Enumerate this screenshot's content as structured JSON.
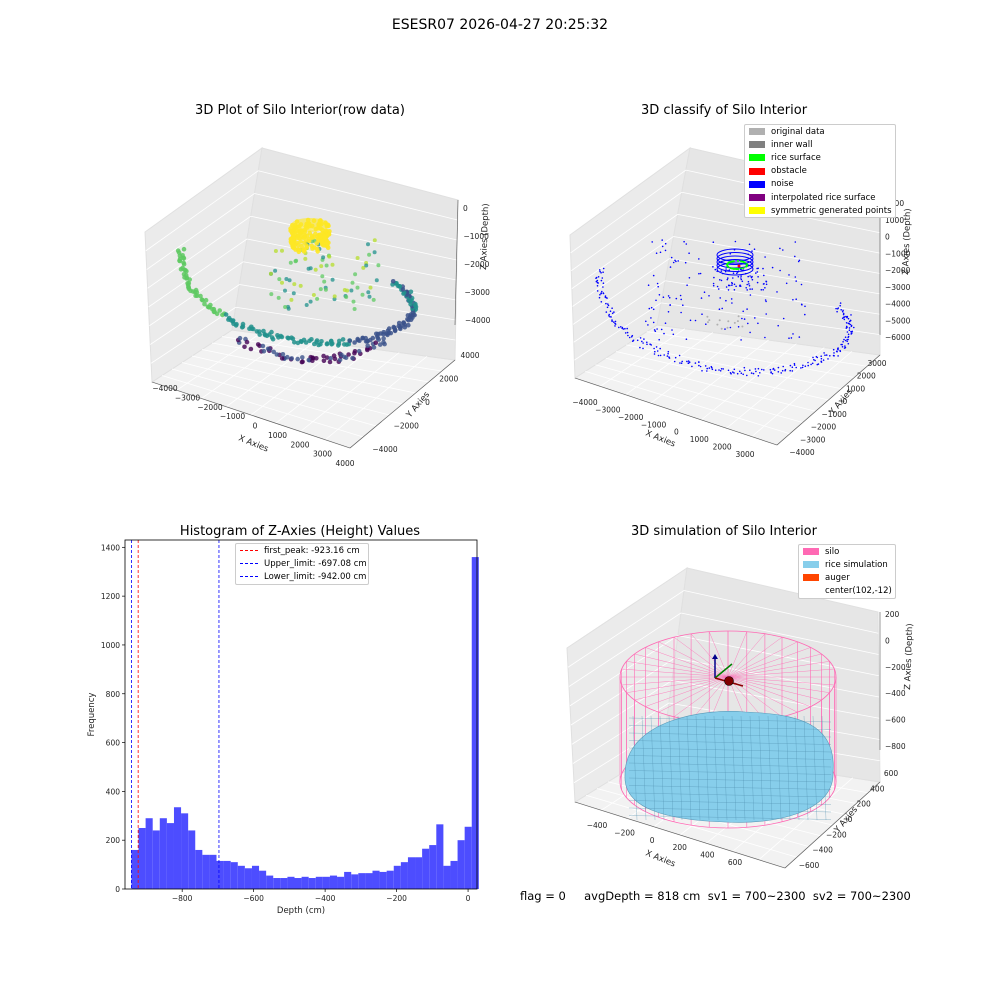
{
  "suptitle": "ESESR07 2026-04-27 20:25:32",
  "footer_text": "flag = 0     avgDepth = 818 cm  sv1 = 700~2300  sv2 = 700~2300",
  "colors": {
    "histogram_bar": "#4d4dff",
    "first_peak_line": "#ff0000",
    "limit_lines": "#0000ff",
    "silo_wire": "#ff69b4",
    "rice_surface": "#87ceeb",
    "auger": "#ff4500",
    "noise_points": "#0000ff"
  },
  "chart_data": [
    {
      "id": "raw",
      "type": "scatter",
      "title": "3D Plot of Silo Interior(row data)",
      "xlabel": "X Axies",
      "ylabel": "Y Axies",
      "zlabel": "Z Axies (Depth)",
      "xticks": [
        "−4000",
        "−3000",
        "−2000",
        "−1000",
        "0",
        "1000",
        "2000",
        "3000",
        "4000"
      ],
      "yticks": [
        "−4000",
        "−2000",
        "0",
        "2000",
        "4000"
      ],
      "zticks": [
        "0",
        "−1000",
        "−2000",
        "−3000",
        "−4000"
      ],
      "zlim": [
        -4500,
        0
      ],
      "colormap": "viridis"
    },
    {
      "id": "classify",
      "type": "scatter",
      "title": "3D classify of Silo Interior",
      "xlabel": "X Axies",
      "ylabel": "Y Axies",
      "zlabel": "Z Axies (Depth)",
      "xticks": [
        "−4000",
        "−3000",
        "−2000",
        "−1000",
        "0",
        "1000",
        "2000",
        "3000"
      ],
      "yticks": [
        "−4000",
        "−3000",
        "−2000",
        "−1000",
        "0",
        "1000",
        "2000",
        "3000"
      ],
      "zticks": [
        "2000",
        "1000",
        "0",
        "−1000",
        "−2000",
        "−3000",
        "−4000",
        "−5000",
        "−6000"
      ],
      "zlim": [
        -6000,
        2000
      ],
      "legend": [
        {
          "label": "original data",
          "color": "#b0b0b0"
        },
        {
          "label": "inner wall",
          "color": "#808080"
        },
        {
          "label": "rice surface",
          "color": "#00ff00"
        },
        {
          "label": "obstacle",
          "color": "#ff0000"
        },
        {
          "label": "noise",
          "color": "#0000ff"
        },
        {
          "label": "interpolated rice surface",
          "color": "#800080"
        },
        {
          "label": "symmetric generated points",
          "color": "#ffff00"
        }
      ]
    },
    {
      "id": "histogram",
      "type": "bar",
      "title": "Histogram of Z-Axies (Height) Values",
      "xlabel": "Depth (cm)",
      "ylabel": "Frequency",
      "xlim": [
        -960,
        25
      ],
      "ylim": [
        0,
        1430
      ],
      "xticks": [
        -800,
        -600,
        -400,
        -200,
        0
      ],
      "xtick_labels": [
        "−800",
        "−600",
        "−400",
        "−200",
        "0"
      ],
      "yticks": [
        0,
        200,
        400,
        600,
        800,
        1000,
        1200,
        1400
      ],
      "bin_start": -942,
      "bin_width": 19.84,
      "values": [
        160,
        250,
        290,
        240,
        290,
        270,
        335,
        310,
        240,
        160,
        140,
        140,
        115,
        115,
        110,
        95,
        85,
        95,
        75,
        55,
        45,
        45,
        50,
        45,
        50,
        45,
        50,
        50,
        55,
        50,
        70,
        60,
        65,
        65,
        75,
        70,
        75,
        95,
        110,
        130,
        130,
        165,
        180,
        265,
        95,
        115,
        200,
        255,
        1360
      ],
      "vlines": [
        {
          "label": "first_peak: -923.16 cm",
          "x": -923.16,
          "color": "#ff0000"
        },
        {
          "label": "Upper_limit: -697.08 cm",
          "x": -697.08,
          "color": "#0000ff"
        },
        {
          "label": "Lower_limit: -942.00 cm",
          "x": -942.0,
          "color": "#0000ff"
        }
      ]
    },
    {
      "id": "simulation",
      "type": "surface",
      "title": "3D simulation of Silo Interior",
      "xlabel": "X Axies",
      "ylabel": "Y Axies",
      "zlabel": "Z Axies (Depth)",
      "xticks": [
        "−400",
        "−200",
        "0",
        "200",
        "400",
        "600"
      ],
      "yticks": [
        "−600",
        "−400",
        "−200",
        "0",
        "200",
        "400",
        "600"
      ],
      "zticks": [
        "200",
        "0",
        "−200",
        "−400",
        "−600",
        "−800"
      ],
      "zlim": [
        -900,
        300
      ],
      "legend": [
        {
          "label": "silo",
          "color": "#ff69b4",
          "kind": "patch"
        },
        {
          "label": "rice simulation",
          "color": "#87ceeb",
          "kind": "patch"
        },
        {
          "label": "auger",
          "color": "#ff4500",
          "kind": "patch"
        },
        {
          "label": "center(102,-12)",
          "color": "",
          "kind": "text"
        }
      ]
    }
  ]
}
